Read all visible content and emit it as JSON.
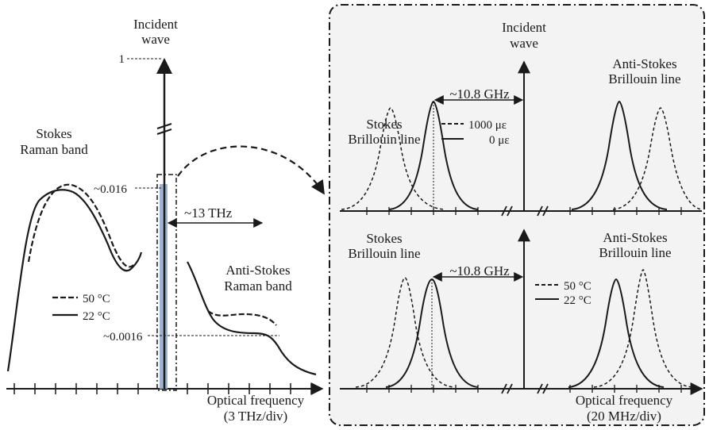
{
  "left_panel": {
    "incident_wave": [
      "Incident",
      "wave"
    ],
    "tick_one": "1",
    "stokes_raman": [
      "Stokes",
      "Raman band"
    ],
    "antistokes_raman": [
      "Anti-Stokes",
      "Raman band"
    ],
    "level_high": "~0.016",
    "level_low": "~0.0016",
    "shift": "~13 THz",
    "legend": [
      {
        "label": "50 °C",
        "style": "dashed"
      },
      {
        "label": "22 °C",
        "style": "solid"
      }
    ],
    "axis_label": [
      "Optical frequency",
      "(3 THz/div)"
    ]
  },
  "right_top": {
    "incident_wave": [
      "Incident",
      "wave"
    ],
    "stokes": [
      "Stokes",
      "Brillouin line"
    ],
    "antistokes": [
      "Anti-Stokes",
      "Brillouin line"
    ],
    "shift": "~10.8 GHz",
    "legend": [
      {
        "label": "1000 με",
        "style": "dashed"
      },
      {
        "label": "0 με",
        "style": "solid"
      }
    ]
  },
  "right_bottom": {
    "stokes": [
      "Stokes",
      "Brillouin line"
    ],
    "antistokes": [
      "Anti-Stokes",
      "Brillouin line"
    ],
    "shift": "~10.8 GHz",
    "legend": [
      {
        "label": "50 °C",
        "style": "dashed"
      },
      {
        "label": "22 °C",
        "style": "solid"
      }
    ],
    "axis_label": [
      "Optical frequency",
      "(20 MHz/div)"
    ]
  },
  "colors": {
    "ink": "#1a1a1a",
    "window_band": "#9db3cf",
    "panel_bg": "#f3f3f3"
  }
}
